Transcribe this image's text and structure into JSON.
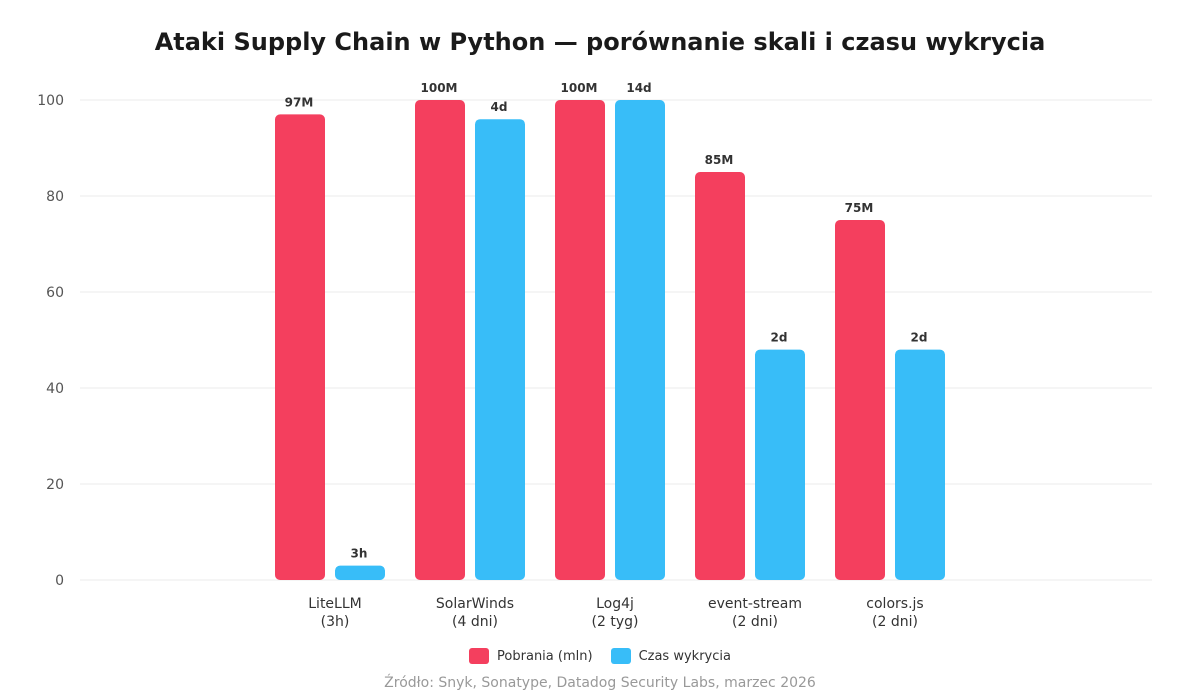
{
  "chart_data": {
    "type": "bar",
    "title": "Ataki Supply Chain w Python — porównanie skali i czasu wykrycia",
    "categories": [
      [
        "LiteLLM",
        "(3h)"
      ],
      [
        "SolarWinds",
        "(4 dni)"
      ],
      [
        "Log4j",
        "(2 tyg)"
      ],
      [
        "event-stream",
        "(2 dni)"
      ],
      [
        "colors.js",
        "(2 dni)"
      ]
    ],
    "series": [
      {
        "name": "Pobrania (mln)",
        "color": "#f43f5e",
        "values": [
          97,
          100,
          100,
          85,
          75
        ],
        "labels": [
          "97M",
          "100M",
          "100M",
          "85M",
          "75M"
        ]
      },
      {
        "name": "Czas wykrycia",
        "color": "#38bdf8",
        "values": [
          3,
          96,
          100,
          48,
          48
        ],
        "labels": [
          "3h",
          "4d",
          "14d",
          "2d",
          "2d"
        ]
      }
    ],
    "yticks": [
      0,
      20,
      40,
      60,
      80,
      100
    ],
    "ylim": [
      0,
      100
    ],
    "grid": true,
    "legend_position": "bottom-center"
  },
  "source": "Źródło: Snyk, Sonatype, Datadog Security Labs, marzec 2026"
}
